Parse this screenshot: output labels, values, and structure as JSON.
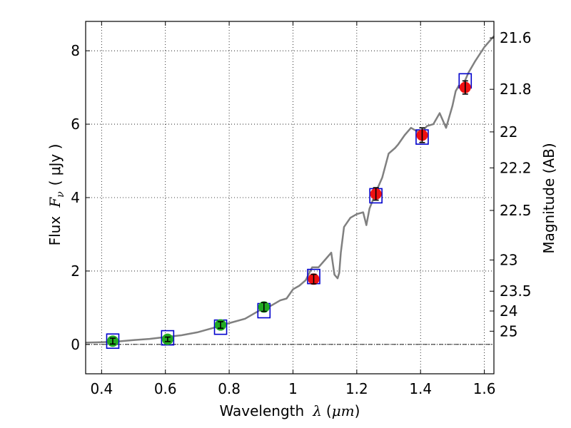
{
  "chart_data": {
    "type": "line",
    "xlabel": {
      "prefix": "Wavelength",
      "symbol": "λ",
      "unit_open": "(",
      "unit": "μm",
      "unit_close": ")"
    },
    "ylabel": {
      "prefix": "Flux",
      "symbol": "F",
      "subscript": "ν",
      "unit": "( μJy )"
    },
    "y2label": "Magnitude (AB)",
    "xlim": [
      0.35,
      1.63
    ],
    "ylim": [
      -0.8,
      8.8
    ],
    "x_ticks": [
      0.4,
      0.6,
      0.8,
      1.0,
      1.2,
      1.4,
      1.6
    ],
    "x_tick_labels": [
      "0.4",
      "0.6",
      "0.8",
      "1",
      "1.2",
      "1.4",
      "1.6"
    ],
    "y_ticks": [
      0,
      2,
      4,
      6,
      8
    ],
    "y_tick_labels": [
      "0",
      "2",
      "4",
      "6",
      "8"
    ],
    "y2_ticks": [
      {
        "label": "21.6",
        "flux": 8.35
      },
      {
        "label": "21.8",
        "flux": 6.95
      },
      {
        "label": "22",
        "flux": 5.79
      },
      {
        "label": "22.2",
        "flux": 4.81
      },
      {
        "label": "22.5",
        "flux": 3.65
      },
      {
        "label": "23",
        "flux": 2.3
      },
      {
        "label": "23.5",
        "flux": 1.45
      },
      {
        "label": "24",
        "flux": 0.91
      },
      {
        "label": "25",
        "flux": 0.36
      }
    ],
    "grid": true,
    "colors": {
      "model": "#808080",
      "green": "#22aa22",
      "red": "#ee1111",
      "box": "#0000cc",
      "error": "#000000",
      "zero_line": "#000000"
    },
    "series": [
      {
        "style": "model-spectrum",
        "x": [
          0.35,
          0.4,
          0.45,
          0.5,
          0.55,
          0.6,
          0.65,
          0.7,
          0.75,
          0.8,
          0.85,
          0.88,
          0.9,
          0.93,
          0.96,
          0.98,
          1.0,
          1.02,
          1.04,
          1.06,
          1.08,
          1.1,
          1.12,
          1.13,
          1.14,
          1.145,
          1.15,
          1.16,
          1.18,
          1.2,
          1.22,
          1.23,
          1.24,
          1.26,
          1.28,
          1.3,
          1.32,
          1.33,
          1.35,
          1.37,
          1.4,
          1.42,
          1.44,
          1.46,
          1.48,
          1.5,
          1.51,
          1.52,
          1.53,
          1.55,
          1.57,
          1.6,
          1.63
        ],
        "y": [
          0.05,
          0.06,
          0.08,
          0.12,
          0.15,
          0.2,
          0.25,
          0.33,
          0.45,
          0.58,
          0.7,
          0.85,
          0.95,
          1.05,
          1.2,
          1.25,
          1.5,
          1.6,
          1.75,
          2.1,
          2.1,
          2.3,
          2.5,
          1.9,
          1.8,
          1.95,
          2.5,
          3.2,
          3.45,
          3.55,
          3.6,
          3.25,
          3.7,
          4.15,
          4.55,
          5.2,
          5.35,
          5.45,
          5.7,
          5.9,
          5.75,
          5.95,
          6.0,
          6.3,
          5.9,
          6.5,
          6.9,
          7.05,
          7.0,
          7.4,
          7.7,
          8.1,
          8.4
        ]
      },
      {
        "style": "green-points",
        "x": [
          0.435,
          0.607,
          0.773,
          0.909
        ],
        "y": [
          0.09,
          0.14,
          0.53,
          1.02
        ],
        "err": [
          0.08,
          0.06,
          0.09,
          0.12
        ]
      },
      {
        "style": "red-points",
        "x": [
          1.065,
          1.26,
          1.405,
          1.54
        ],
        "y": [
          1.78,
          4.1,
          5.7,
          7.0
        ],
        "err": [
          0.13,
          0.17,
          0.2,
          0.18
        ]
      },
      {
        "style": "model-boxes",
        "x": [
          0.435,
          0.607,
          0.773,
          0.909,
          1.065,
          1.26,
          1.405,
          1.54
        ],
        "y": [
          0.09,
          0.18,
          0.47,
          0.92,
          1.85,
          4.05,
          5.65,
          7.18
        ]
      }
    ]
  }
}
